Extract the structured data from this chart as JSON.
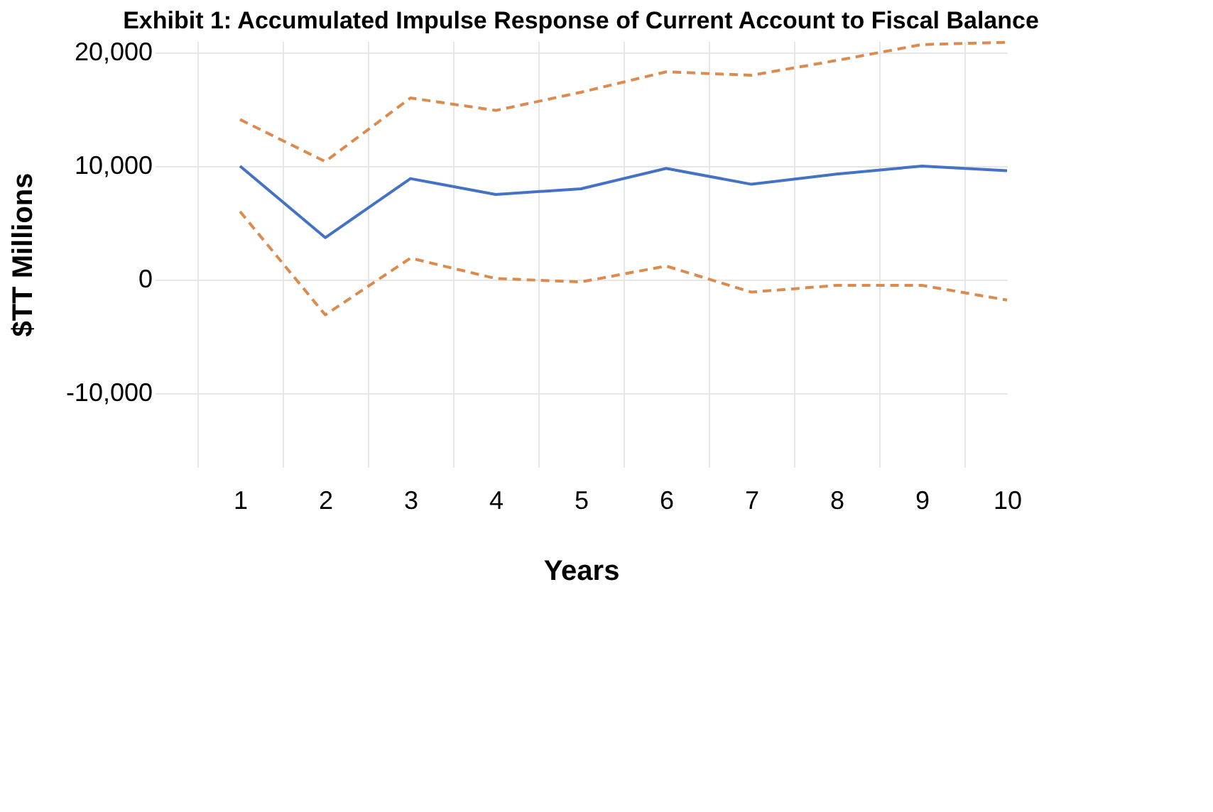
{
  "chart_data": {
    "type": "line",
    "title": "Exhibit 1: Accumulated Impulse Response of Current Account to Fiscal Balance",
    "xlabel": "Years",
    "ylabel": "$TT Millions",
    "categories": [
      "1",
      "2",
      "3",
      "4",
      "5",
      "6",
      "7",
      "8",
      "9",
      "10"
    ],
    "series": [
      {
        "color": "#4472c4",
        "line_style": "solid",
        "values": [
          10000,
          3700,
          8900,
          7500,
          8000,
          9800,
          8400,
          9300,
          10000,
          9600
        ]
      },
      {
        "color": "#dd8a4f",
        "line_style": "dashed",
        "values": [
          14100,
          10400,
          16000,
          14900,
          16500,
          18300,
          18000,
          19300,
          20700,
          20900
        ]
      },
      {
        "color": "#dd8a4f",
        "line_style": "dashed",
        "values": [
          6000,
          -3100,
          1900,
          100,
          -200,
          1200,
          -1100,
          -500,
          -500,
          -1800
        ]
      }
    ],
    "ylim": [
      -16500,
      21000
    ],
    "yticks": [
      {
        "value": -10000,
        "label": "-10,000"
      },
      0,
      {
        "value": 10000,
        "label": "10,000"
      },
      {
        "value": 20000,
        "label": "20,000"
      }
    ],
    "grid": true,
    "legend": false,
    "marker": "none"
  }
}
